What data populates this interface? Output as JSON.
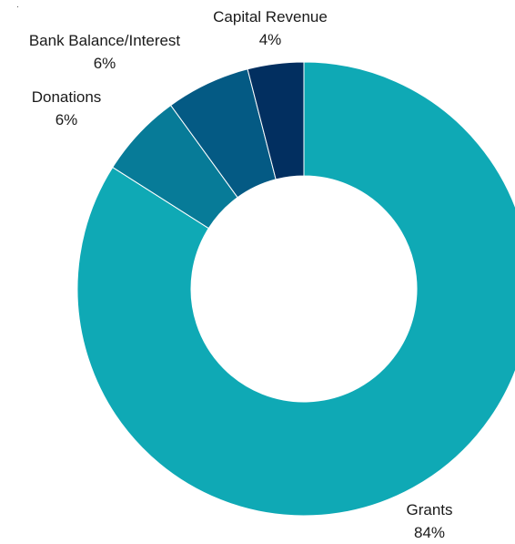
{
  "chart_data": {
    "type": "pie",
    "donut": true,
    "title": "",
    "slices": [
      {
        "label": "Grants",
        "value": 84,
        "value_label": "84%",
        "color": "#0FA9B5"
      },
      {
        "label": "Donations",
        "value": 6,
        "value_label": "6%",
        "color": "#077B98"
      },
      {
        "label": "Bank Balance/Interest",
        "value": 6,
        "value_label": "6%",
        "color": "#045A84"
      },
      {
        "label": "Capital Revenue",
        "value": 4,
        "value_label": "4%",
        "color": "#022F60"
      }
    ],
    "legend": "none"
  }
}
